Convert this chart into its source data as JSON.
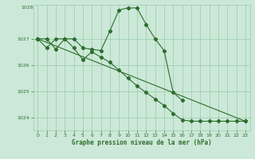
{
  "line1_x": [
    0,
    1,
    2,
    3,
    4,
    5,
    6,
    7,
    8,
    9,
    10,
    11,
    12,
    13,
    14,
    15,
    16
  ],
  "line1_y": [
    1027.0,
    1027.0,
    1026.6,
    1027.0,
    1027.0,
    1026.65,
    1026.6,
    1026.55,
    1027.3,
    1028.1,
    1028.18,
    1028.18,
    1027.55,
    1027.0,
    1026.55,
    1024.95,
    1024.65
  ],
  "line2_x": [
    0,
    1,
    2,
    3,
    4,
    5,
    6,
    7,
    8,
    9,
    10,
    11,
    12,
    13,
    14,
    15,
    16,
    17,
    18,
    19,
    20,
    21,
    22,
    23
  ],
  "line2_y": [
    1027.0,
    1026.65,
    1027.0,
    1027.0,
    1026.65,
    1026.2,
    1026.5,
    1026.3,
    1026.1,
    1025.8,
    1025.5,
    1025.2,
    1024.95,
    1024.7,
    1024.45,
    1024.15,
    1023.9,
    1023.85,
    1023.85,
    1023.85,
    1023.85,
    1023.85,
    1023.85,
    1023.85
  ],
  "line3_x": [
    0,
    23
  ],
  "line3_y": [
    1027.0,
    1023.85
  ],
  "line_color": "#2d6e2d",
  "bg_color": "#cce8d8",
  "grid_color": "#99ccaa",
  "xlabel": "Graphe pression niveau de la mer (hPa)",
  "ylim": [
    1023.5,
    1028.3
  ],
  "xlim": [
    -0.5,
    23.5
  ],
  "yticks": [
    1024,
    1025,
    1026,
    1027
  ],
  "xticks": [
    0,
    1,
    2,
    3,
    4,
    5,
    6,
    7,
    8,
    9,
    10,
    11,
    12,
    13,
    14,
    15,
    16,
    17,
    18,
    19,
    20,
    21,
    22,
    23
  ]
}
